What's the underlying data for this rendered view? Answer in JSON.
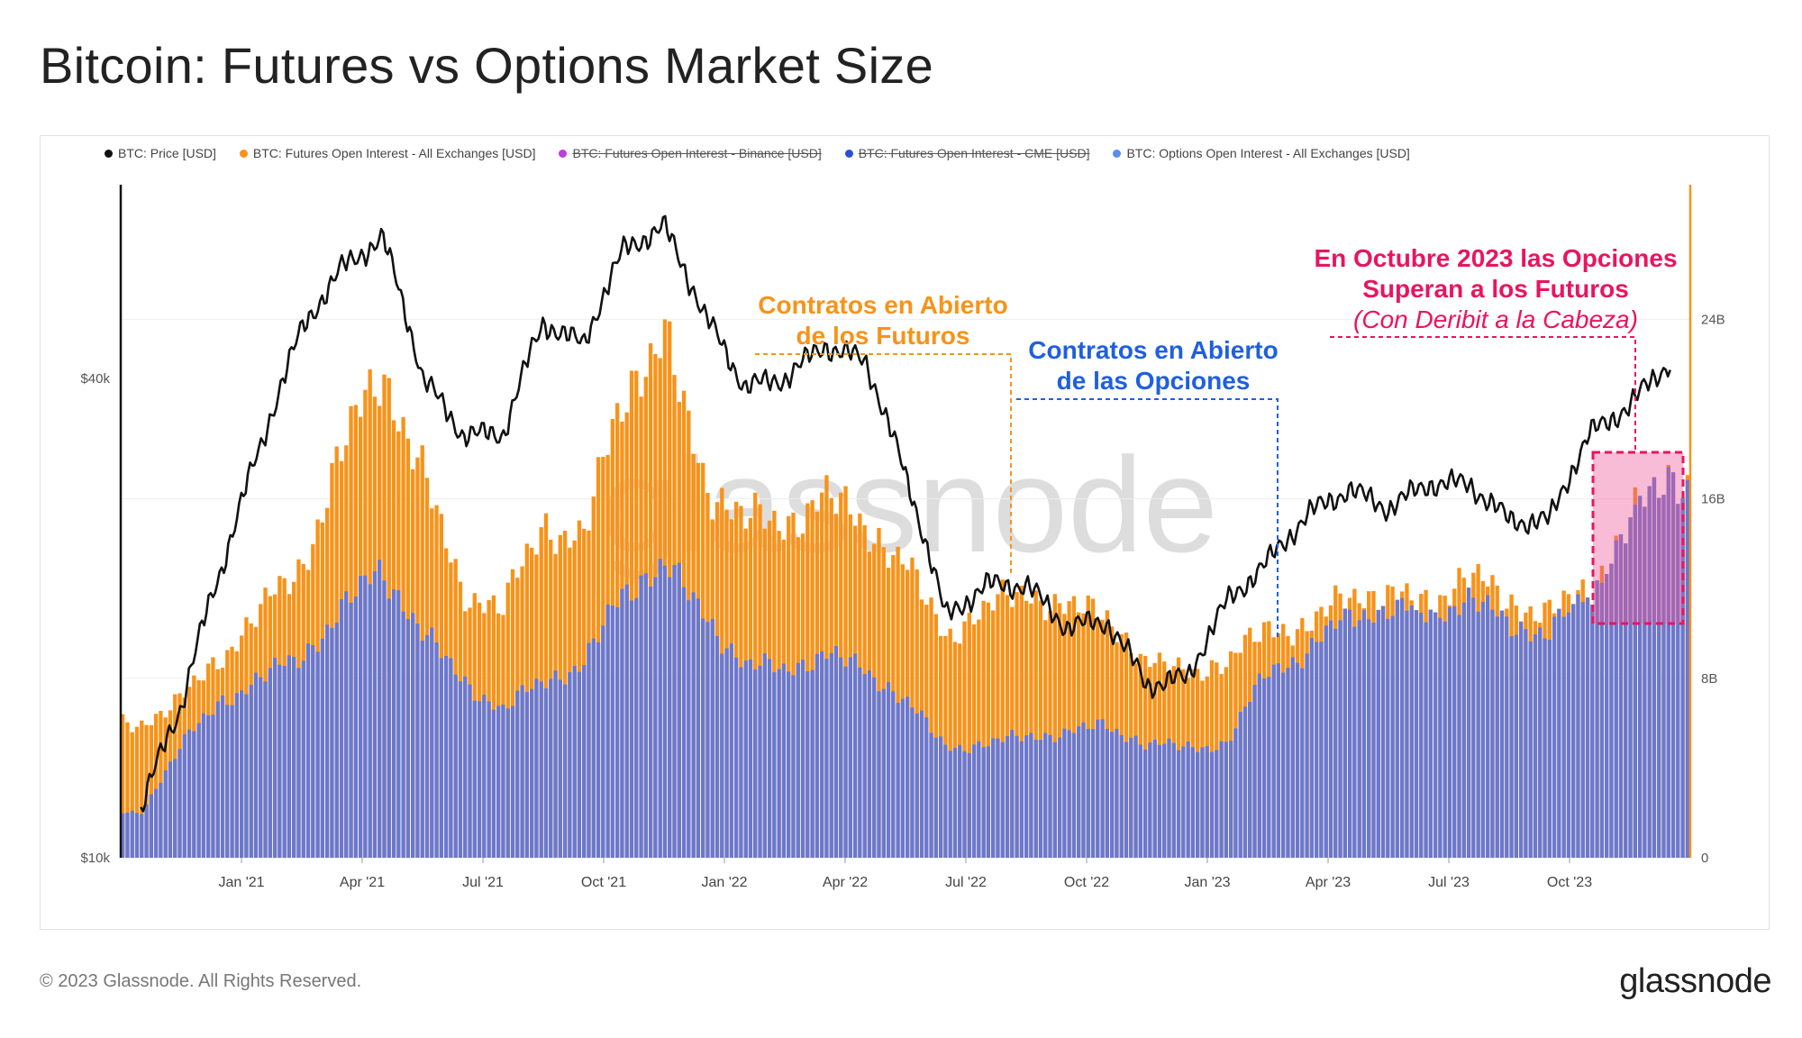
{
  "title": "Bitcoin: Futures vs Options Market Size",
  "footer": "© 2023 Glassnode. All Rights Reserved.",
  "brand": "glassnode",
  "watermark": "glassnode",
  "legend": [
    {
      "label": "BTC: Price [USD]",
      "color": "#111111",
      "hidden": false
    },
    {
      "label": "BTC: Futures Open Interest - All Exchanges [USD]",
      "color": "#f7931a",
      "hidden": false
    },
    {
      "label": "BTC: Futures Open Interest - Binance [USD]",
      "color": "#c03adf",
      "hidden": true
    },
    {
      "label": "BTC: Futures Open Interest - CME [USD]",
      "color": "#2a4fd6",
      "hidden": true
    },
    {
      "label": "BTC: Options Open Interest - All Exchanges [USD]",
      "color": "#5b8def",
      "hidden": false
    }
  ],
  "annotations": {
    "futures": {
      "line1": "Contratos en Abierto",
      "line2": "de los Futuros",
      "color": "#f7931a"
    },
    "options": {
      "line1": "Contratos en Abierto",
      "line2": "de las Opciones",
      "color": "#1f5fe0"
    },
    "october": {
      "line1": "En Octubre 2023 las Opciones",
      "line2": "Superan a los Futuros",
      "line3": "(Con Deribit a la Cabeza)",
      "color": "#e8155f"
    }
  },
  "chart_data": {
    "type": "line",
    "title": "Bitcoin: Futures vs Options Market Size",
    "x_ticks": [
      "Jan '21",
      "Apr '21",
      "Jul '21",
      "Oct '21",
      "Jan '22",
      "Apr '22",
      "Jul '22",
      "Oct '22",
      "Jan '23",
      "Apr '23",
      "Jul '23",
      "Oct '23"
    ],
    "y_left": {
      "scale": "log",
      "ticks": [
        "$10k",
        "$40k"
      ],
      "range": [
        10000,
        70000
      ]
    },
    "y_right": {
      "scale": "linear",
      "ticks": [
        "0",
        "8B",
        "16B",
        "24B"
      ],
      "range": [
        0,
        30
      ]
    },
    "x": [
      "2020-10",
      "2020-11",
      "2020-12",
      "2021-01",
      "2021-02",
      "2021-03",
      "2021-04",
      "2021-05",
      "2021-06",
      "2021-07",
      "2021-08",
      "2021-09",
      "2021-10",
      "2021-11",
      "2021-12",
      "2022-01",
      "2022-02",
      "2022-03",
      "2022-04",
      "2022-05",
      "2022-06",
      "2022-07",
      "2022-08",
      "2022-09",
      "2022-10",
      "2022-11",
      "2022-12",
      "2023-01",
      "2023-02",
      "2023-03",
      "2023-04",
      "2023-05",
      "2023-06",
      "2023-07",
      "2023-08",
      "2023-09",
      "2023-10",
      "2023-11",
      "2023-12"
    ],
    "series": [
      {
        "name": "BTC: Price [USD]",
        "axis": "left",
        "values": [
          11500,
          15500,
          23000,
          33000,
          46000,
          55000,
          60000,
          40000,
          34000,
          34000,
          47000,
          44000,
          58000,
          62000,
          48000,
          39000,
          40000,
          44000,
          42000,
          30000,
          20000,
          22000,
          22000,
          19500,
          19800,
          16500,
          16800,
          21000,
          23500,
          27000,
          29000,
          27500,
          29500,
          29500,
          26500,
          26500,
          34000,
          37000,
          42000
        ]
      },
      {
        "name": "BTC: Futures Open Interest - All Exchanges [USD]",
        "axis": "right",
        "values": [
          6,
          7,
          9,
          11,
          13,
          18,
          22,
          17,
          12,
          11,
          15,
          14,
          21,
          23,
          17,
          15,
          15,
          16,
          15,
          13,
          10,
          11,
          12,
          11,
          11,
          8.5,
          8.5,
          8.5,
          10.5,
          10,
          12,
          11.5,
          11.5,
          12.5,
          11.5,
          10.8,
          12,
          15,
          17
        ]
      },
      {
        "name": "BTC: Options Open Interest - All Exchanges [USD]",
        "axis": "right",
        "values": [
          2,
          5,
          7,
          8,
          9,
          11,
          13,
          10,
          8,
          6.5,
          8,
          8.5,
          12,
          13,
          11,
          8.5,
          8.5,
          9,
          8.5,
          7,
          5,
          5,
          5.5,
          5.5,
          6,
          5,
          5,
          5,
          8.5,
          9,
          11,
          11,
          11,
          11.5,
          10.5,
          10,
          12,
          16,
          18
        ]
      }
    ]
  }
}
